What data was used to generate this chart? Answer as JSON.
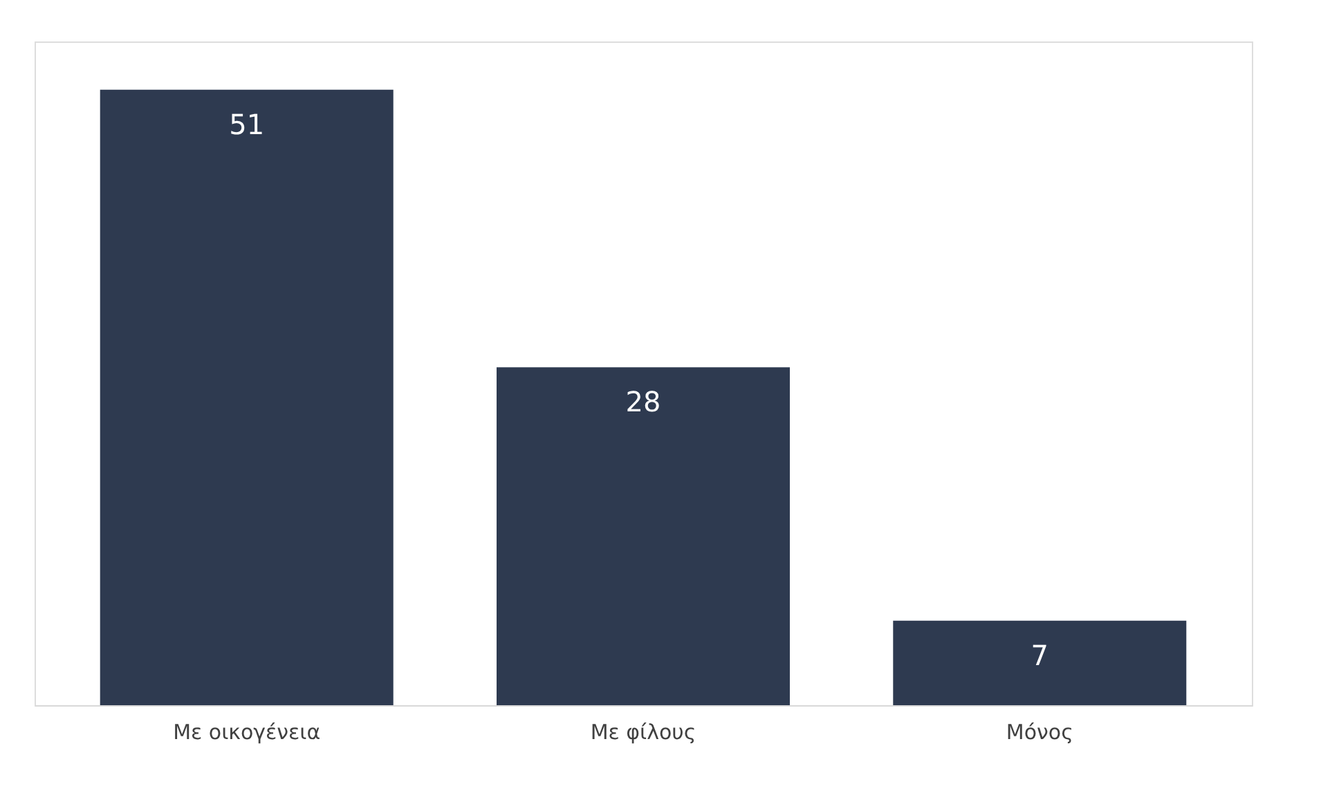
{
  "chart_data": {
    "type": "bar",
    "categories": [
      "Με οικογένεια",
      "Με φίλους",
      "Μόνος"
    ],
    "values": [
      51,
      28,
      7
    ],
    "color": "#2e3a50",
    "data_labels": true,
    "grid": false
  }
}
